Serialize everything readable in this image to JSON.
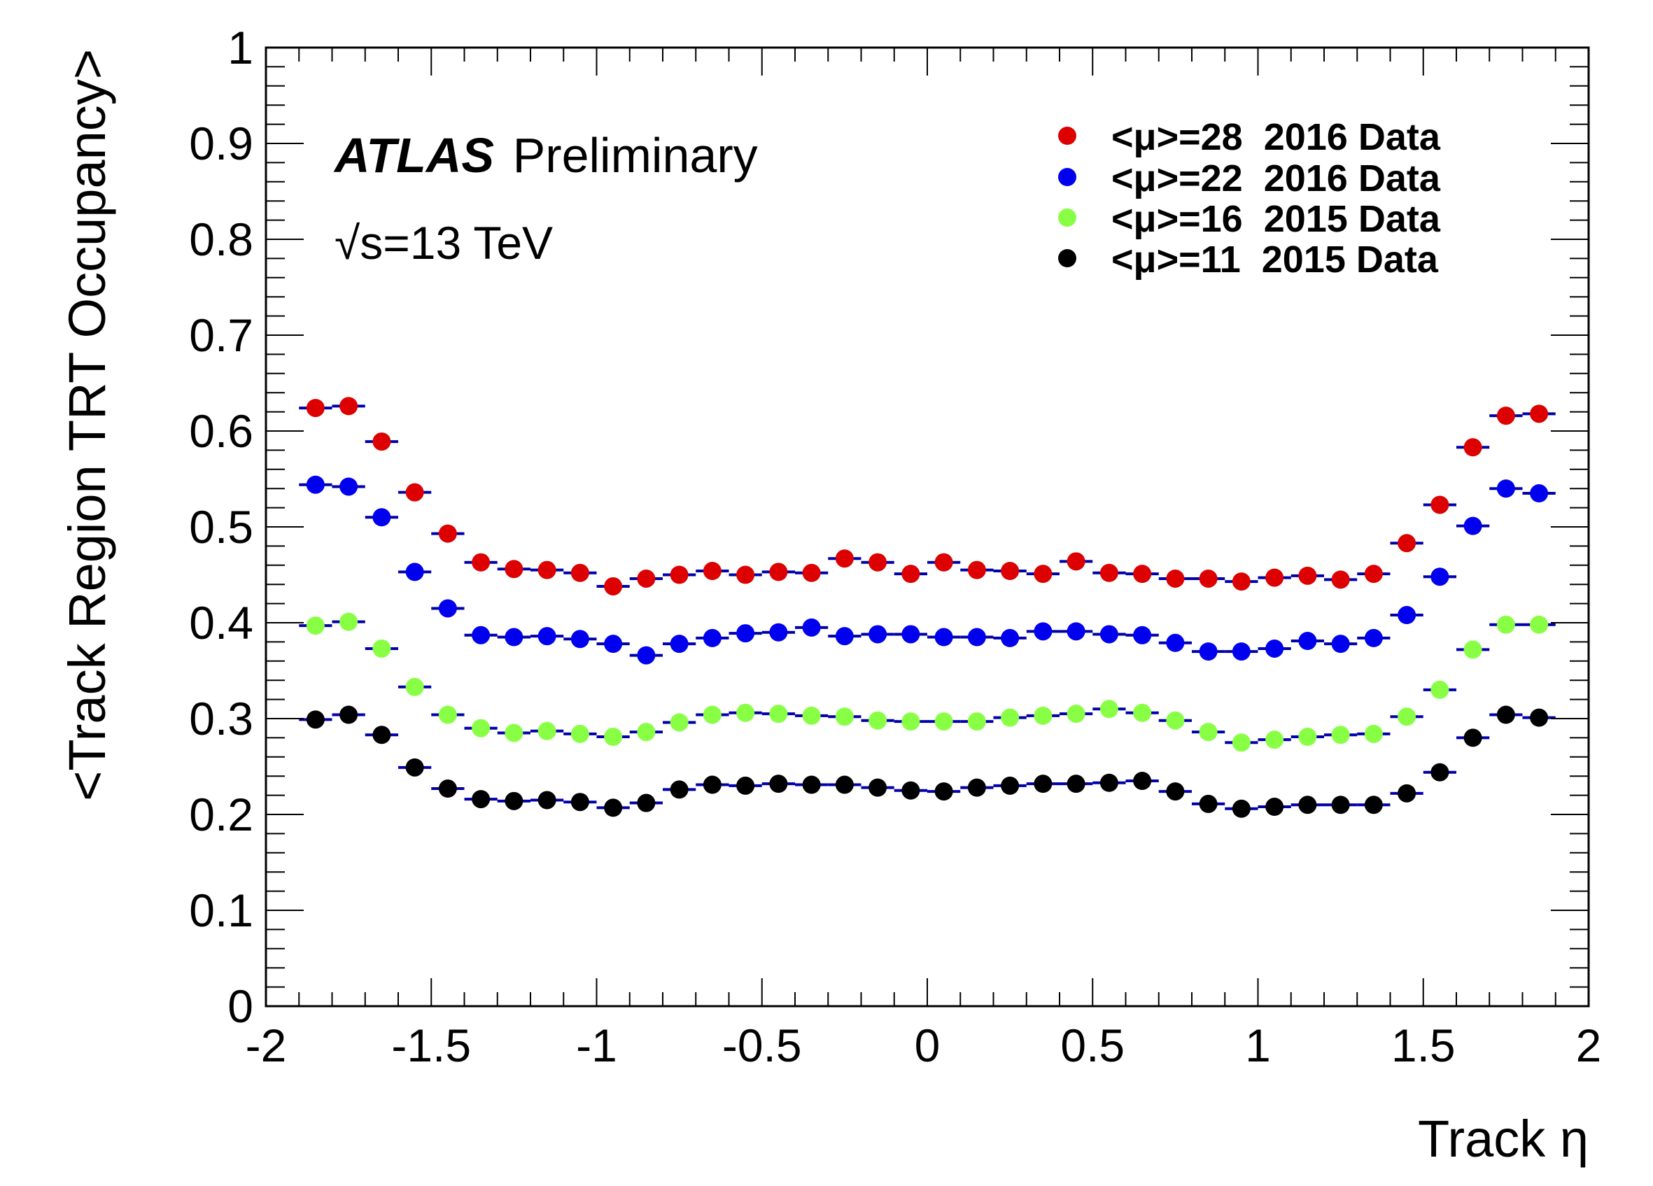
{
  "chart_data": {
    "type": "scatter",
    "xlabel": "Track η",
    "ylabel": "<Track Region TRT Occupancy>",
    "xlim": [
      -2,
      2
    ],
    "ylim": [
      0,
      1
    ],
    "x_ticks": [
      "-2",
      "-1.5",
      "-1",
      "-0.5",
      "0",
      "0.5",
      "1",
      "1.5",
      "2"
    ],
    "y_ticks": [
      "0",
      "0.1",
      "0.2",
      "0.3",
      "0.4",
      "0.5",
      "0.6",
      "0.7",
      "0.8",
      "0.9",
      "1"
    ],
    "grid": false,
    "legend_position": "top-right",
    "annotations": {
      "experiment": "ATLAS",
      "status": "Preliminary",
      "energy": "√s=13 TeV"
    },
    "x": [
      -1.85,
      -1.75,
      -1.65,
      -1.55,
      -1.45,
      -1.35,
      -1.25,
      -1.15,
      -1.05,
      -0.95,
      -0.85,
      -0.75,
      -0.65,
      -0.55,
      -0.45,
      -0.35,
      -0.25,
      -0.15,
      -0.05,
      0.05,
      0.15,
      0.25,
      0.35,
      0.45,
      0.55,
      0.65,
      0.75,
      0.85,
      0.95,
      1.05,
      1.15,
      1.25,
      1.35,
      1.45,
      1.55,
      1.65,
      1.75,
      1.85
    ],
    "bin_half_width": 0.05,
    "series": [
      {
        "name": "<μ>=28  2016 Data",
        "color": "#dd0000",
        "values": [
          0.624,
          0.626,
          0.589,
          0.536,
          0.493,
          0.463,
          0.456,
          0.455,
          0.452,
          0.438,
          0.446,
          0.45,
          0.454,
          0.45,
          0.453,
          0.452,
          0.467,
          0.463,
          0.451,
          0.463,
          0.455,
          0.454,
          0.451,
          0.464,
          0.452,
          0.451,
          0.446,
          0.446,
          0.443,
          0.447,
          0.449,
          0.445,
          0.451,
          0.483,
          0.523,
          0.583,
          0.616,
          0.618
        ]
      },
      {
        "name": "<μ>=22  2016 Data",
        "color": "#0000ee",
        "values": [
          0.544,
          0.542,
          0.51,
          0.453,
          0.415,
          0.387,
          0.385,
          0.386,
          0.383,
          0.378,
          0.366,
          0.378,
          0.384,
          0.389,
          0.39,
          0.395,
          0.386,
          0.388,
          0.388,
          0.385,
          0.385,
          0.384,
          0.391,
          0.391,
          0.388,
          0.387,
          0.379,
          0.37,
          0.37,
          0.373,
          0.381,
          0.378,
          0.384,
          0.408,
          0.448,
          0.501,
          0.54,
          0.535
        ]
      },
      {
        "name": "<μ>=16  2015 Data",
        "color": "#88ff44",
        "values": [
          0.397,
          0.401,
          0.373,
          0.333,
          0.304,
          0.29,
          0.285,
          0.287,
          0.284,
          0.281,
          0.286,
          0.296,
          0.304,
          0.306,
          0.305,
          0.303,
          0.302,
          0.298,
          0.297,
          0.297,
          0.297,
          0.301,
          0.303,
          0.305,
          0.31,
          0.306,
          0.298,
          0.286,
          0.275,
          0.278,
          0.281,
          0.283,
          0.284,
          0.302,
          0.33,
          0.372,
          0.398,
          0.398
        ]
      },
      {
        "name": "<μ>=11  2015 Data",
        "color": "#000000",
        "values": [
          0.299,
          0.304,
          0.283,
          0.249,
          0.227,
          0.216,
          0.214,
          0.215,
          0.213,
          0.207,
          0.212,
          0.226,
          0.231,
          0.23,
          0.232,
          0.231,
          0.231,
          0.228,
          0.225,
          0.224,
          0.228,
          0.23,
          0.232,
          0.232,
          0.233,
          0.235,
          0.224,
          0.211,
          0.206,
          0.208,
          0.21,
          0.21,
          0.21,
          0.222,
          0.244,
          0.28,
          0.304,
          0.301
        ]
      }
    ]
  }
}
